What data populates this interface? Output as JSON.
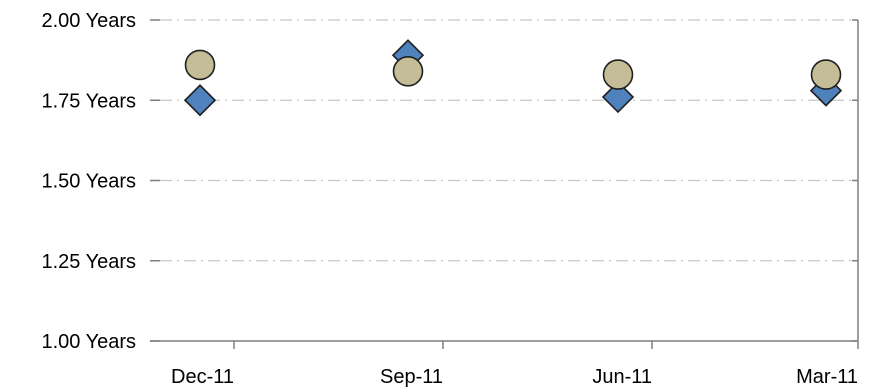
{
  "chart_data": {
    "type": "scatter",
    "title": "",
    "xlabel": "",
    "ylabel": "",
    "categories": [
      "Dec-11",
      "Sep-11",
      "Jun-11",
      "Mar-11"
    ],
    "y_ticks": [
      "1.00 Years",
      "1.25 Years",
      "1.50 Years",
      "1.75 Years",
      "2.00 Years"
    ],
    "ylim": [
      1.0,
      2.0
    ],
    "grid": true,
    "legend": "none",
    "series": [
      {
        "marker": "diamond",
        "color": "#4f81bd",
        "values": [
          1.75,
          1.89,
          1.76,
          1.78
        ]
      },
      {
        "marker": "circle",
        "color": "#c4bd97",
        "values": [
          1.86,
          1.84,
          1.83,
          1.83
        ]
      }
    ]
  }
}
